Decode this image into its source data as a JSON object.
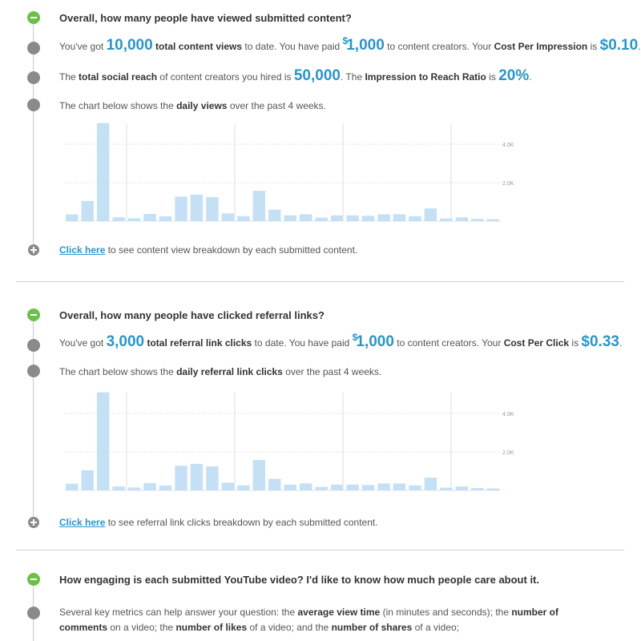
{
  "views_section": {
    "question": "Overall, how many people have viewed submitted content?",
    "line1": {
      "p1": "You've got",
      "views": "10,000",
      "label": "total content views",
      "p2": "to date. You have paid",
      "currency": "$",
      "paid": "1,000",
      "p3": "to content creators. Your",
      "cpi_label": "Cost Per Impression",
      "p4": "is",
      "cpi": "$0.10",
      "p5": "."
    },
    "line2": {
      "p1": "The",
      "reach_label": "total social reach",
      "p2": "of content creators you hired is",
      "reach": "50,000",
      "p3": ". The",
      "ratio_label": "Impression to Reach Ratio",
      "p4": "is",
      "ratio": "20%",
      "p5": "."
    },
    "line3": {
      "p1": "The chart below shows the",
      "bold": "daily views",
      "p2": "over the past 4 weeks."
    },
    "link_text": "Click here",
    "link_rest": "to see content view breakdown by each submitted content."
  },
  "clicks_section": {
    "question": "Overall, how many people have clicked referral links?",
    "line1": {
      "p1": "You've got",
      "clicks": "3,000",
      "label": "total referral link clicks",
      "p2": "to date. You have paid",
      "currency": "$",
      "paid": "1,000",
      "p3": "to content creators. Your",
      "cpc_label": "Cost Per Click",
      "p4": "is",
      "cpc": "$0.33",
      "p5": "."
    },
    "line2": {
      "p1": "The chart below shows the",
      "bold": "daily referral link clicks",
      "p2": "over the past 4 weeks."
    },
    "link_text": "Click here",
    "link_rest": "to see referral link clicks breakdown by each submitted content."
  },
  "engagement_section": {
    "question": "How engaging is each submitted YouTube video? I'd like to know how much people care about it.",
    "p1": "Several key metrics can help answer your question: the",
    "b1": "average view time",
    "p2": "(in minutes and seconds); the",
    "b2": "number of comments",
    "p3": "on a video; the",
    "b3": "number of likes",
    "p4": "of a video; and the",
    "b4": "number of shares",
    "p5": "of a video;"
  },
  "colors": {
    "accent": "#2a95c9",
    "bar": "#c5e0f5",
    "green": "#6cc04a",
    "dot": "#8a8a8a"
  },
  "chart_data": [
    {
      "type": "bar",
      "title": "",
      "xlabel": "",
      "ylabel": "",
      "ylim": [
        0,
        5000
      ],
      "yticks": [
        "2.0K",
        "4.0K"
      ],
      "grid": true,
      "values": [
        350,
        1050,
        5100,
        200,
        150,
        380,
        250,
        1280,
        1380,
        1250,
        400,
        260,
        1580,
        600,
        300,
        360,
        180,
        300,
        300,
        280,
        360,
        360,
        260,
        660,
        140,
        200,
        120,
        100
      ]
    },
    {
      "type": "bar",
      "title": "",
      "xlabel": "",
      "ylabel": "",
      "ylim": [
        0,
        5000
      ],
      "yticks": [
        "2.0K",
        "4.0K"
      ],
      "grid": true,
      "values": [
        350,
        1050,
        5100,
        200,
        150,
        380,
        250,
        1280,
        1380,
        1250,
        400,
        260,
        1580,
        600,
        300,
        360,
        180,
        300,
        300,
        280,
        360,
        360,
        260,
        660,
        140,
        200,
        120,
        100
      ]
    }
  ]
}
